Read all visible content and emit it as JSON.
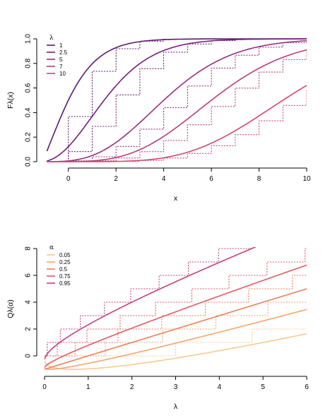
{
  "chart_data": [
    {
      "type": "line",
      "ylabel": "Fλ(x)",
      "xlabel": "x",
      "xlim": [
        -1,
        10
      ],
      "ylim": [
        0,
        1
      ],
      "xticks": [
        "0",
        "2",
        "4",
        "6",
        "8",
        "10"
      ],
      "yticks": [
        "0.0",
        "0.2",
        "0.4",
        "0.6",
        "0.8",
        "1.0"
      ],
      "legend": {
        "title": "λ",
        "position": "top-left",
        "entries": [
          "1",
          "2.5",
          "5",
          "7",
          "10"
        ]
      },
      "line_styles": {
        "smooth": "solid",
        "step": "dotted"
      },
      "series": [
        {
          "name": "1",
          "color": "#5b1a72",
          "lambda": 1
        },
        {
          "name": "2.5",
          "color": "#731f7a",
          "lambda": 2.5
        },
        {
          "name": "5",
          "color": "#982d80",
          "lambda": 5
        },
        {
          "name": "7",
          "color": "#b83c7a",
          "lambda": 7
        },
        {
          "name": "10",
          "color": "#d6456c",
          "lambda": 10
        }
      ]
    },
    {
      "type": "line",
      "ylabel": "Qλ(α)",
      "xlabel": "λ",
      "xlim": [
        0,
        6
      ],
      "ylim": [
        -1,
        8
      ],
      "xticks": [
        "0",
        "1",
        "2",
        "3",
        "4",
        "5",
        "6"
      ],
      "yticks": [
        "0",
        "2",
        "4",
        "6",
        "8"
      ],
      "legend": {
        "title": "α",
        "position": "top-left",
        "entries": [
          "0.05",
          "0.25",
          "0.5",
          "0.75",
          "0.95"
        ]
      },
      "line_styles": {
        "smooth": "solid",
        "step": "dotted"
      },
      "series": [
        {
          "name": "0.05",
          "color": "#fcc98e",
          "alpha": 0.05
        },
        {
          "name": "0.25",
          "color": "#f9a46b",
          "alpha": 0.25
        },
        {
          "name": "0.5",
          "color": "#f07d57",
          "alpha": 0.5
        },
        {
          "name": "0.75",
          "color": "#e35960",
          "alpha": 0.75
        },
        {
          "name": "0.95",
          "color": "#c43f7b",
          "alpha": 0.95
        }
      ]
    }
  ]
}
